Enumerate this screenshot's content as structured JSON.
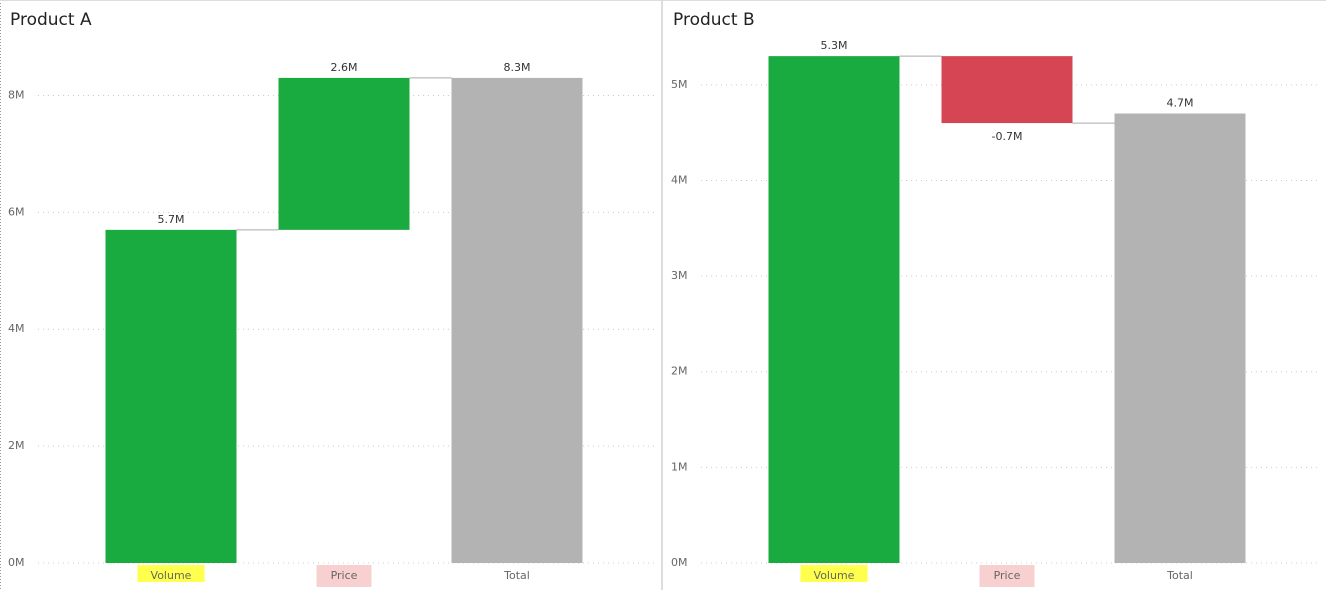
{
  "chart_data": [
    {
      "type": "waterfall",
      "title": "Product A",
      "categories": [
        "Volume",
        "Price",
        "Total"
      ],
      "values": [
        5.7,
        2.6,
        8.3
      ],
      "value_labels": [
        "5.7M",
        "2.6M",
        "8.3M"
      ],
      "colors": [
        "#1aab40",
        "#1aab40",
        "#b3b3b3"
      ],
      "last_is_total": true,
      "category_backgrounds": [
        "#ffff4d",
        "#f8d0d0",
        null
      ],
      "ylim": [
        0,
        9
      ],
      "yticks": [
        {
          "value": 0,
          "label": "0M"
        },
        {
          "value": 2,
          "label": "2M"
        },
        {
          "value": 4,
          "label": "4M"
        },
        {
          "value": 6,
          "label": "6M"
        },
        {
          "value": 8,
          "label": "8M"
        }
      ],
      "grid": true
    },
    {
      "type": "waterfall",
      "title": "Product B",
      "categories": [
        "Volume",
        "Price",
        "Total"
      ],
      "values": [
        5.3,
        -0.7,
        4.7
      ],
      "value_labels": [
        "5.3M",
        "-0.7M",
        "4.7M"
      ],
      "colors": [
        "#1aab40",
        "#d64554",
        "#b3b3b3"
      ],
      "last_is_total": true,
      "category_backgrounds": [
        "#ffff4d",
        "#f8d0d0",
        null
      ],
      "ylim": [
        0,
        5.5
      ],
      "yticks": [
        {
          "value": 0,
          "label": "0M"
        },
        {
          "value": 1,
          "label": "1M"
        },
        {
          "value": 2,
          "label": "2M"
        },
        {
          "value": 3,
          "label": "3M"
        },
        {
          "value": 4,
          "label": "4M"
        },
        {
          "value": 5,
          "label": "5M"
        }
      ],
      "grid": true
    }
  ]
}
